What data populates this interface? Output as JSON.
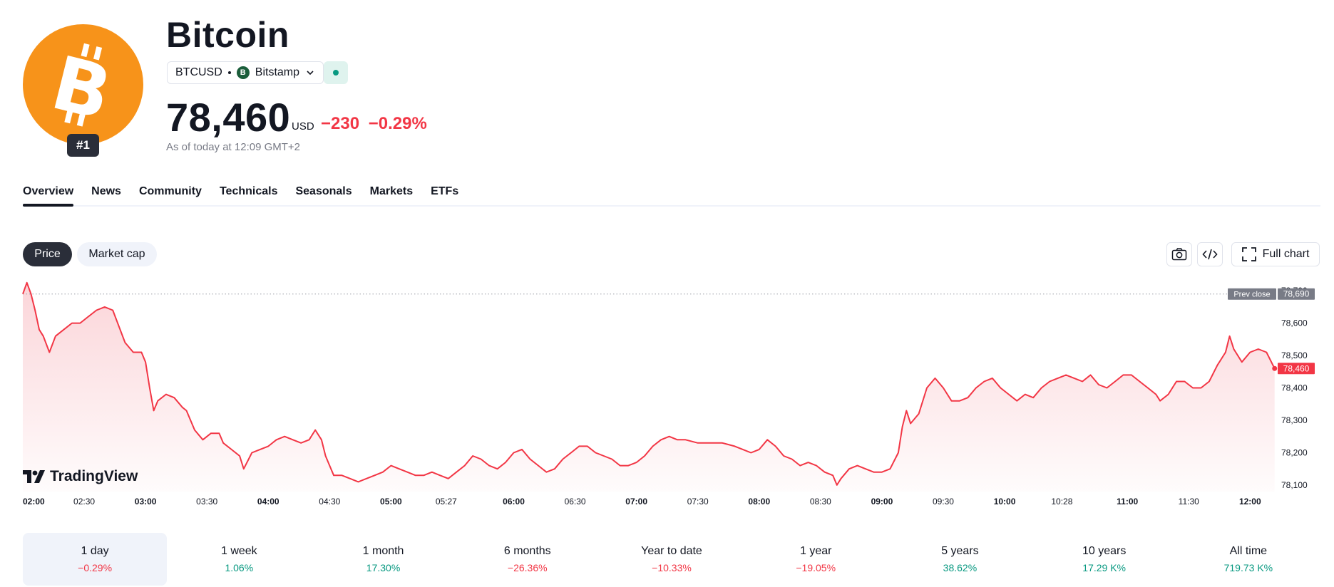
{
  "header": {
    "logo_icon": "bitcoin-icon",
    "rank": "#1",
    "title": "Bitcoin",
    "symbol": "BTCUSD",
    "exchange_icon": "bitstamp-icon",
    "exchange": "Bitstamp",
    "status_icon": "market-open-dot-icon",
    "price": "78,460",
    "currency": "USD",
    "change_abs": "−230",
    "change_pct": "−0.29%",
    "as_of": "As of today at 12:09 GMT+2"
  },
  "tabs": [
    "Overview",
    "News",
    "Community",
    "Technicals",
    "Seasonals",
    "Markets",
    "ETFs"
  ],
  "active_tab": "Overview",
  "chart_controls": {
    "price_label": "Price",
    "market_cap_label": "Market cap",
    "snapshot_icon": "camera-icon",
    "embed_icon": "code-icon",
    "full_chart_icon": "fullscreen-icon",
    "full_chart_label": "Full chart"
  },
  "watermark": "TradingView",
  "chart_data": {
    "type": "area",
    "colors": {
      "line": "#f23645",
      "fill_top": "#fbd5d9",
      "prev_close_tag": "#787b86",
      "last_tag": "#f23645"
    },
    "prev_close_label": "Prev close",
    "prev_close": 78690,
    "last_label": "78,460",
    "last_value": 78460,
    "ylim": [
      78080,
      78740
    ],
    "y_ticks": [
      78700,
      78600,
      78500,
      78400,
      78300,
      78200,
      78100
    ],
    "y_tick_labels": [
      "78,700",
      "78,600",
      "78,500",
      "78,400",
      "78,300",
      "78,200",
      "78,100"
    ],
    "prev_close_value_label": "78,690",
    "x_ticks": [
      {
        "label": "02:00",
        "t": 0,
        "bold": true
      },
      {
        "label": "02:30",
        "t": 30,
        "bold": false
      },
      {
        "label": "03:00",
        "t": 60,
        "bold": true
      },
      {
        "label": "03:30",
        "t": 90,
        "bold": false
      },
      {
        "label": "04:00",
        "t": 120,
        "bold": true
      },
      {
        "label": "04:30",
        "t": 150,
        "bold": false
      },
      {
        "label": "05:00",
        "t": 180,
        "bold": true
      },
      {
        "label": "05:27",
        "t": 207,
        "bold": false
      },
      {
        "label": "06:00",
        "t": 240,
        "bold": true
      },
      {
        "label": "06:30",
        "t": 270,
        "bold": false
      },
      {
        "label": "07:00",
        "t": 300,
        "bold": true
      },
      {
        "label": "07:30",
        "t": 330,
        "bold": false
      },
      {
        "label": "08:00",
        "t": 360,
        "bold": true
      },
      {
        "label": "08:30",
        "t": 390,
        "bold": false
      },
      {
        "label": "09:00",
        "t": 420,
        "bold": true
      },
      {
        "label": "09:30",
        "t": 450,
        "bold": false
      },
      {
        "label": "10:00",
        "t": 480,
        "bold": true
      },
      {
        "label": "10:28",
        "t": 508,
        "bold": false
      },
      {
        "label": "11:00",
        "t": 540,
        "bold": true
      },
      {
        "label": "11:30",
        "t": 570,
        "bold": false
      },
      {
        "label": "12:00",
        "t": 600,
        "bold": true
      }
    ],
    "x_range_minutes": [
      0,
      610
    ],
    "series": [
      {
        "values": [
          [
            0,
            78690
          ],
          [
            2,
            78725
          ],
          [
            4,
            78690
          ],
          [
            6,
            78640
          ],
          [
            8,
            78580
          ],
          [
            10,
            78560
          ],
          [
            13,
            78510
          ],
          [
            16,
            78560
          ],
          [
            20,
            78580
          ],
          [
            24,
            78600
          ],
          [
            28,
            78600
          ],
          [
            32,
            78620
          ],
          [
            36,
            78640
          ],
          [
            40,
            78650
          ],
          [
            44,
            78640
          ],
          [
            47,
            78590
          ],
          [
            50,
            78540
          ],
          [
            54,
            78510
          ],
          [
            58,
            78510
          ],
          [
            60,
            78480
          ],
          [
            62,
            78400
          ],
          [
            64,
            78330
          ],
          [
            66,
            78360
          ],
          [
            70,
            78380
          ],
          [
            74,
            78370
          ],
          [
            78,
            78340
          ],
          [
            80,
            78330
          ],
          [
            84,
            78270
          ],
          [
            88,
            78240
          ],
          [
            92,
            78260
          ],
          [
            96,
            78260
          ],
          [
            98,
            78230
          ],
          [
            102,
            78210
          ],
          [
            106,
            78190
          ],
          [
            108,
            78150
          ],
          [
            112,
            78200
          ],
          [
            116,
            78210
          ],
          [
            120,
            78220
          ],
          [
            124,
            78240
          ],
          [
            128,
            78250
          ],
          [
            132,
            78240
          ],
          [
            136,
            78230
          ],
          [
            140,
            78240
          ],
          [
            143,
            78270
          ],
          [
            146,
            78240
          ],
          [
            148,
            78190
          ],
          [
            150,
            78160
          ],
          [
            152,
            78130
          ],
          [
            156,
            78130
          ],
          [
            160,
            78120
          ],
          [
            164,
            78110
          ],
          [
            168,
            78120
          ],
          [
            172,
            78130
          ],
          [
            176,
            78140
          ],
          [
            180,
            78160
          ],
          [
            184,
            78150
          ],
          [
            188,
            78140
          ],
          [
            192,
            78130
          ],
          [
            196,
            78130
          ],
          [
            200,
            78140
          ],
          [
            204,
            78130
          ],
          [
            208,
            78120
          ],
          [
            212,
            78140
          ],
          [
            216,
            78160
          ],
          [
            220,
            78190
          ],
          [
            224,
            78180
          ],
          [
            228,
            78160
          ],
          [
            232,
            78150
          ],
          [
            236,
            78170
          ],
          [
            240,
            78200
          ],
          [
            244,
            78210
          ],
          [
            248,
            78180
          ],
          [
            252,
            78160
          ],
          [
            256,
            78140
          ],
          [
            260,
            78150
          ],
          [
            264,
            78180
          ],
          [
            268,
            78200
          ],
          [
            272,
            78220
          ],
          [
            276,
            78220
          ],
          [
            280,
            78200
          ],
          [
            284,
            78190
          ],
          [
            288,
            78180
          ],
          [
            292,
            78160
          ],
          [
            296,
            78160
          ],
          [
            300,
            78170
          ],
          [
            304,
            78190
          ],
          [
            308,
            78220
          ],
          [
            312,
            78240
          ],
          [
            316,
            78250
          ],
          [
            320,
            78240
          ],
          [
            324,
            78240
          ],
          [
            330,
            78230
          ],
          [
            336,
            78230
          ],
          [
            342,
            78230
          ],
          [
            348,
            78220
          ],
          [
            352,
            78210
          ],
          [
            356,
            78200
          ],
          [
            360,
            78210
          ],
          [
            364,
            78240
          ],
          [
            368,
            78220
          ],
          [
            372,
            78190
          ],
          [
            376,
            78180
          ],
          [
            380,
            78160
          ],
          [
            384,
            78170
          ],
          [
            388,
            78160
          ],
          [
            392,
            78140
          ],
          [
            396,
            78130
          ],
          [
            398,
            78100
          ],
          [
            400,
            78120
          ],
          [
            404,
            78150
          ],
          [
            408,
            78160
          ],
          [
            412,
            78150
          ],
          [
            416,
            78140
          ],
          [
            420,
            78140
          ],
          [
            424,
            78150
          ],
          [
            428,
            78200
          ],
          [
            430,
            78280
          ],
          [
            432,
            78330
          ],
          [
            434,
            78290
          ],
          [
            438,
            78320
          ],
          [
            442,
            78400
          ],
          [
            446,
            78430
          ],
          [
            450,
            78400
          ],
          [
            454,
            78360
          ],
          [
            458,
            78360
          ],
          [
            462,
            78370
          ],
          [
            466,
            78400
          ],
          [
            470,
            78420
          ],
          [
            474,
            78430
          ],
          [
            478,
            78400
          ],
          [
            482,
            78380
          ],
          [
            486,
            78360
          ],
          [
            490,
            78380
          ],
          [
            494,
            78370
          ],
          [
            498,
            78400
          ],
          [
            502,
            78420
          ],
          [
            506,
            78430
          ],
          [
            510,
            78440
          ],
          [
            514,
            78430
          ],
          [
            518,
            78420
          ],
          [
            522,
            78440
          ],
          [
            526,
            78410
          ],
          [
            530,
            78400
          ],
          [
            534,
            78420
          ],
          [
            538,
            78440
          ],
          [
            542,
            78440
          ],
          [
            546,
            78420
          ],
          [
            550,
            78400
          ],
          [
            554,
            78380
          ],
          [
            556,
            78360
          ],
          [
            560,
            78380
          ],
          [
            564,
            78420
          ],
          [
            568,
            78420
          ],
          [
            572,
            78400
          ],
          [
            576,
            78400
          ],
          [
            580,
            78420
          ],
          [
            584,
            78470
          ],
          [
            588,
            78510
          ],
          [
            590,
            78560
          ],
          [
            592,
            78520
          ],
          [
            596,
            78480
          ],
          [
            600,
            78510
          ],
          [
            604,
            78520
          ],
          [
            608,
            78510
          ],
          [
            612,
            78460
          ]
        ]
      }
    ]
  },
  "periods": [
    {
      "label": "1 day",
      "value": "−0.29%",
      "dir": "neg",
      "active": true
    },
    {
      "label": "1 week",
      "value": "1.06%",
      "dir": "pos",
      "active": false
    },
    {
      "label": "1 month",
      "value": "17.30%",
      "dir": "pos",
      "active": false
    },
    {
      "label": "6 months",
      "value": "−26.36%",
      "dir": "neg",
      "active": false
    },
    {
      "label": "Year to date",
      "value": "−10.33%",
      "dir": "neg",
      "active": false
    },
    {
      "label": "1 year",
      "value": "−19.05%",
      "dir": "neg",
      "active": false
    },
    {
      "label": "5 years",
      "value": "38.62%",
      "dir": "pos",
      "active": false
    },
    {
      "label": "10 years",
      "value": "17.29 K%",
      "dir": "pos",
      "active": false
    },
    {
      "label": "All time",
      "value": "719.73 K%",
      "dir": "pos",
      "active": false
    }
  ]
}
